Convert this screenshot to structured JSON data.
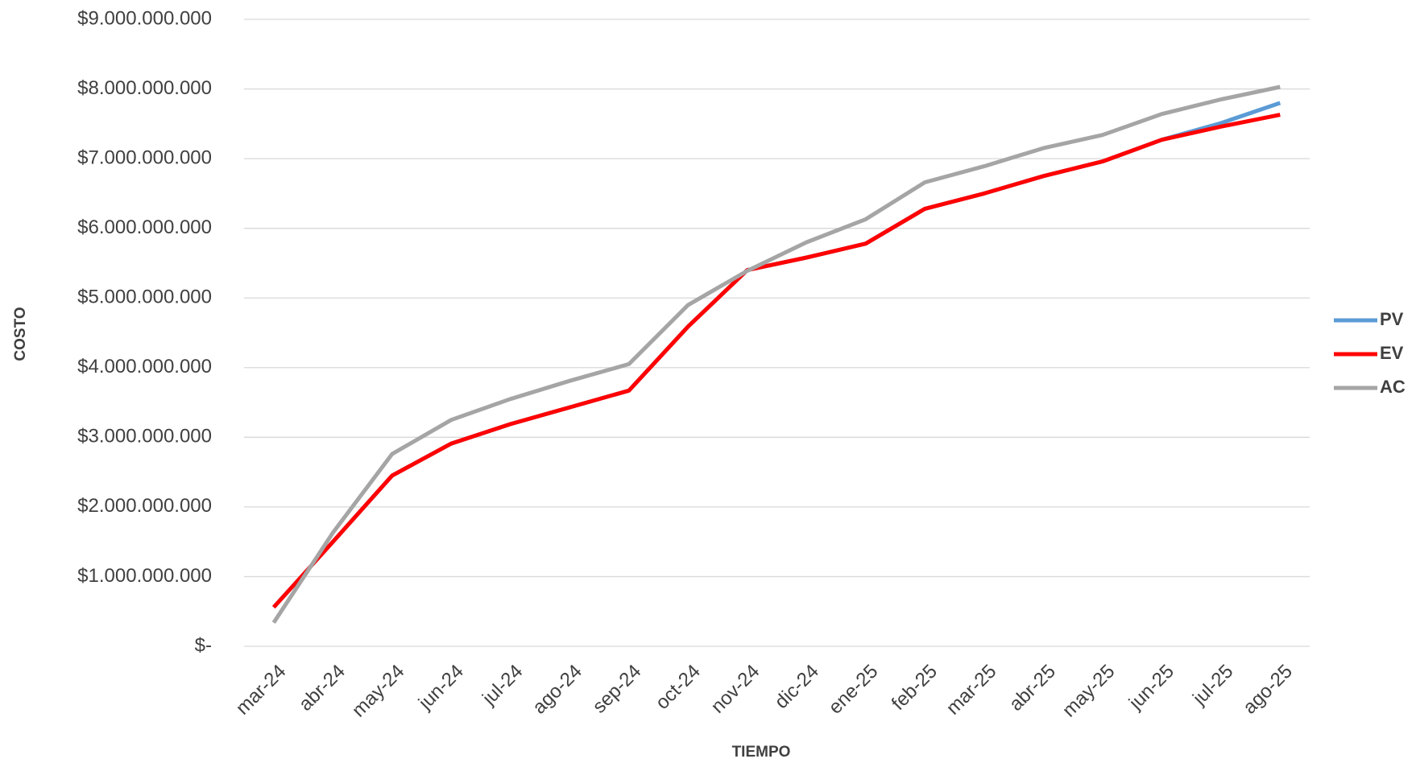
{
  "chart_data": {
    "type": "line",
    "x_label": "TIEMPO",
    "y_label": "COSTO",
    "categories": [
      "mar-24",
      "abr-24",
      "may-24",
      "jun-24",
      "jul-24",
      "ago-24",
      "sep-24",
      "oct-24",
      "nov-24",
      "dic-24",
      "ene-25",
      "feb-25",
      "mar-25",
      "abr-25",
      "may-25",
      "jun-25",
      "jul-25",
      "ago-25"
    ],
    "series": [
      {
        "name": "PV",
        "color": "#5b9bd5",
        "values": [
          560000000,
          1500000000,
          2450000000,
          2910000000,
          3190000000,
          3430000000,
          3670000000,
          4590000000,
          5400000000,
          5580000000,
          5780000000,
          6280000000,
          6500000000,
          6750000000,
          6960000000,
          7270000000,
          7510000000,
          7800000000
        ]
      },
      {
        "name": "EV",
        "color": "#ff0000",
        "values": [
          560000000,
          1500000000,
          2450000000,
          2910000000,
          3190000000,
          3430000000,
          3670000000,
          4590000000,
          5400000000,
          5580000000,
          5780000000,
          6280000000,
          6500000000,
          6750000000,
          6960000000,
          7270000000,
          7460000000,
          7630000000
        ]
      },
      {
        "name": "AC",
        "color": "#a5a5a5",
        "values": [
          340000000,
          1630000000,
          2760000000,
          3250000000,
          3550000000,
          3810000000,
          4050000000,
          4900000000,
          5390000000,
          5800000000,
          6130000000,
          6660000000,
          6890000000,
          7150000000,
          7340000000,
          7640000000,
          7850000000,
          8030000000
        ]
      }
    ],
    "ylim": [
      0,
      9000000000
    ],
    "yticks": [
      {
        "value": 0,
        "label": "$-"
      },
      {
        "value": 1000000000,
        "label": "$1.000.000.000"
      },
      {
        "value": 2000000000,
        "label": "$2.000.000.000"
      },
      {
        "value": 3000000000,
        "label": "$3.000.000.000"
      },
      {
        "value": 4000000000,
        "label": "$4.000.000.000"
      },
      {
        "value": 5000000000,
        "label": "$5.000.000.000"
      },
      {
        "value": 6000000000,
        "label": "$6.000.000.000"
      },
      {
        "value": 7000000000,
        "label": "$7.000.000.000"
      },
      {
        "value": 8000000000,
        "label": "$8.000.000.000"
      },
      {
        "value": 9000000000,
        "label": "$9.000.000.000"
      }
    ],
    "grid": true,
    "legend": "right"
  }
}
